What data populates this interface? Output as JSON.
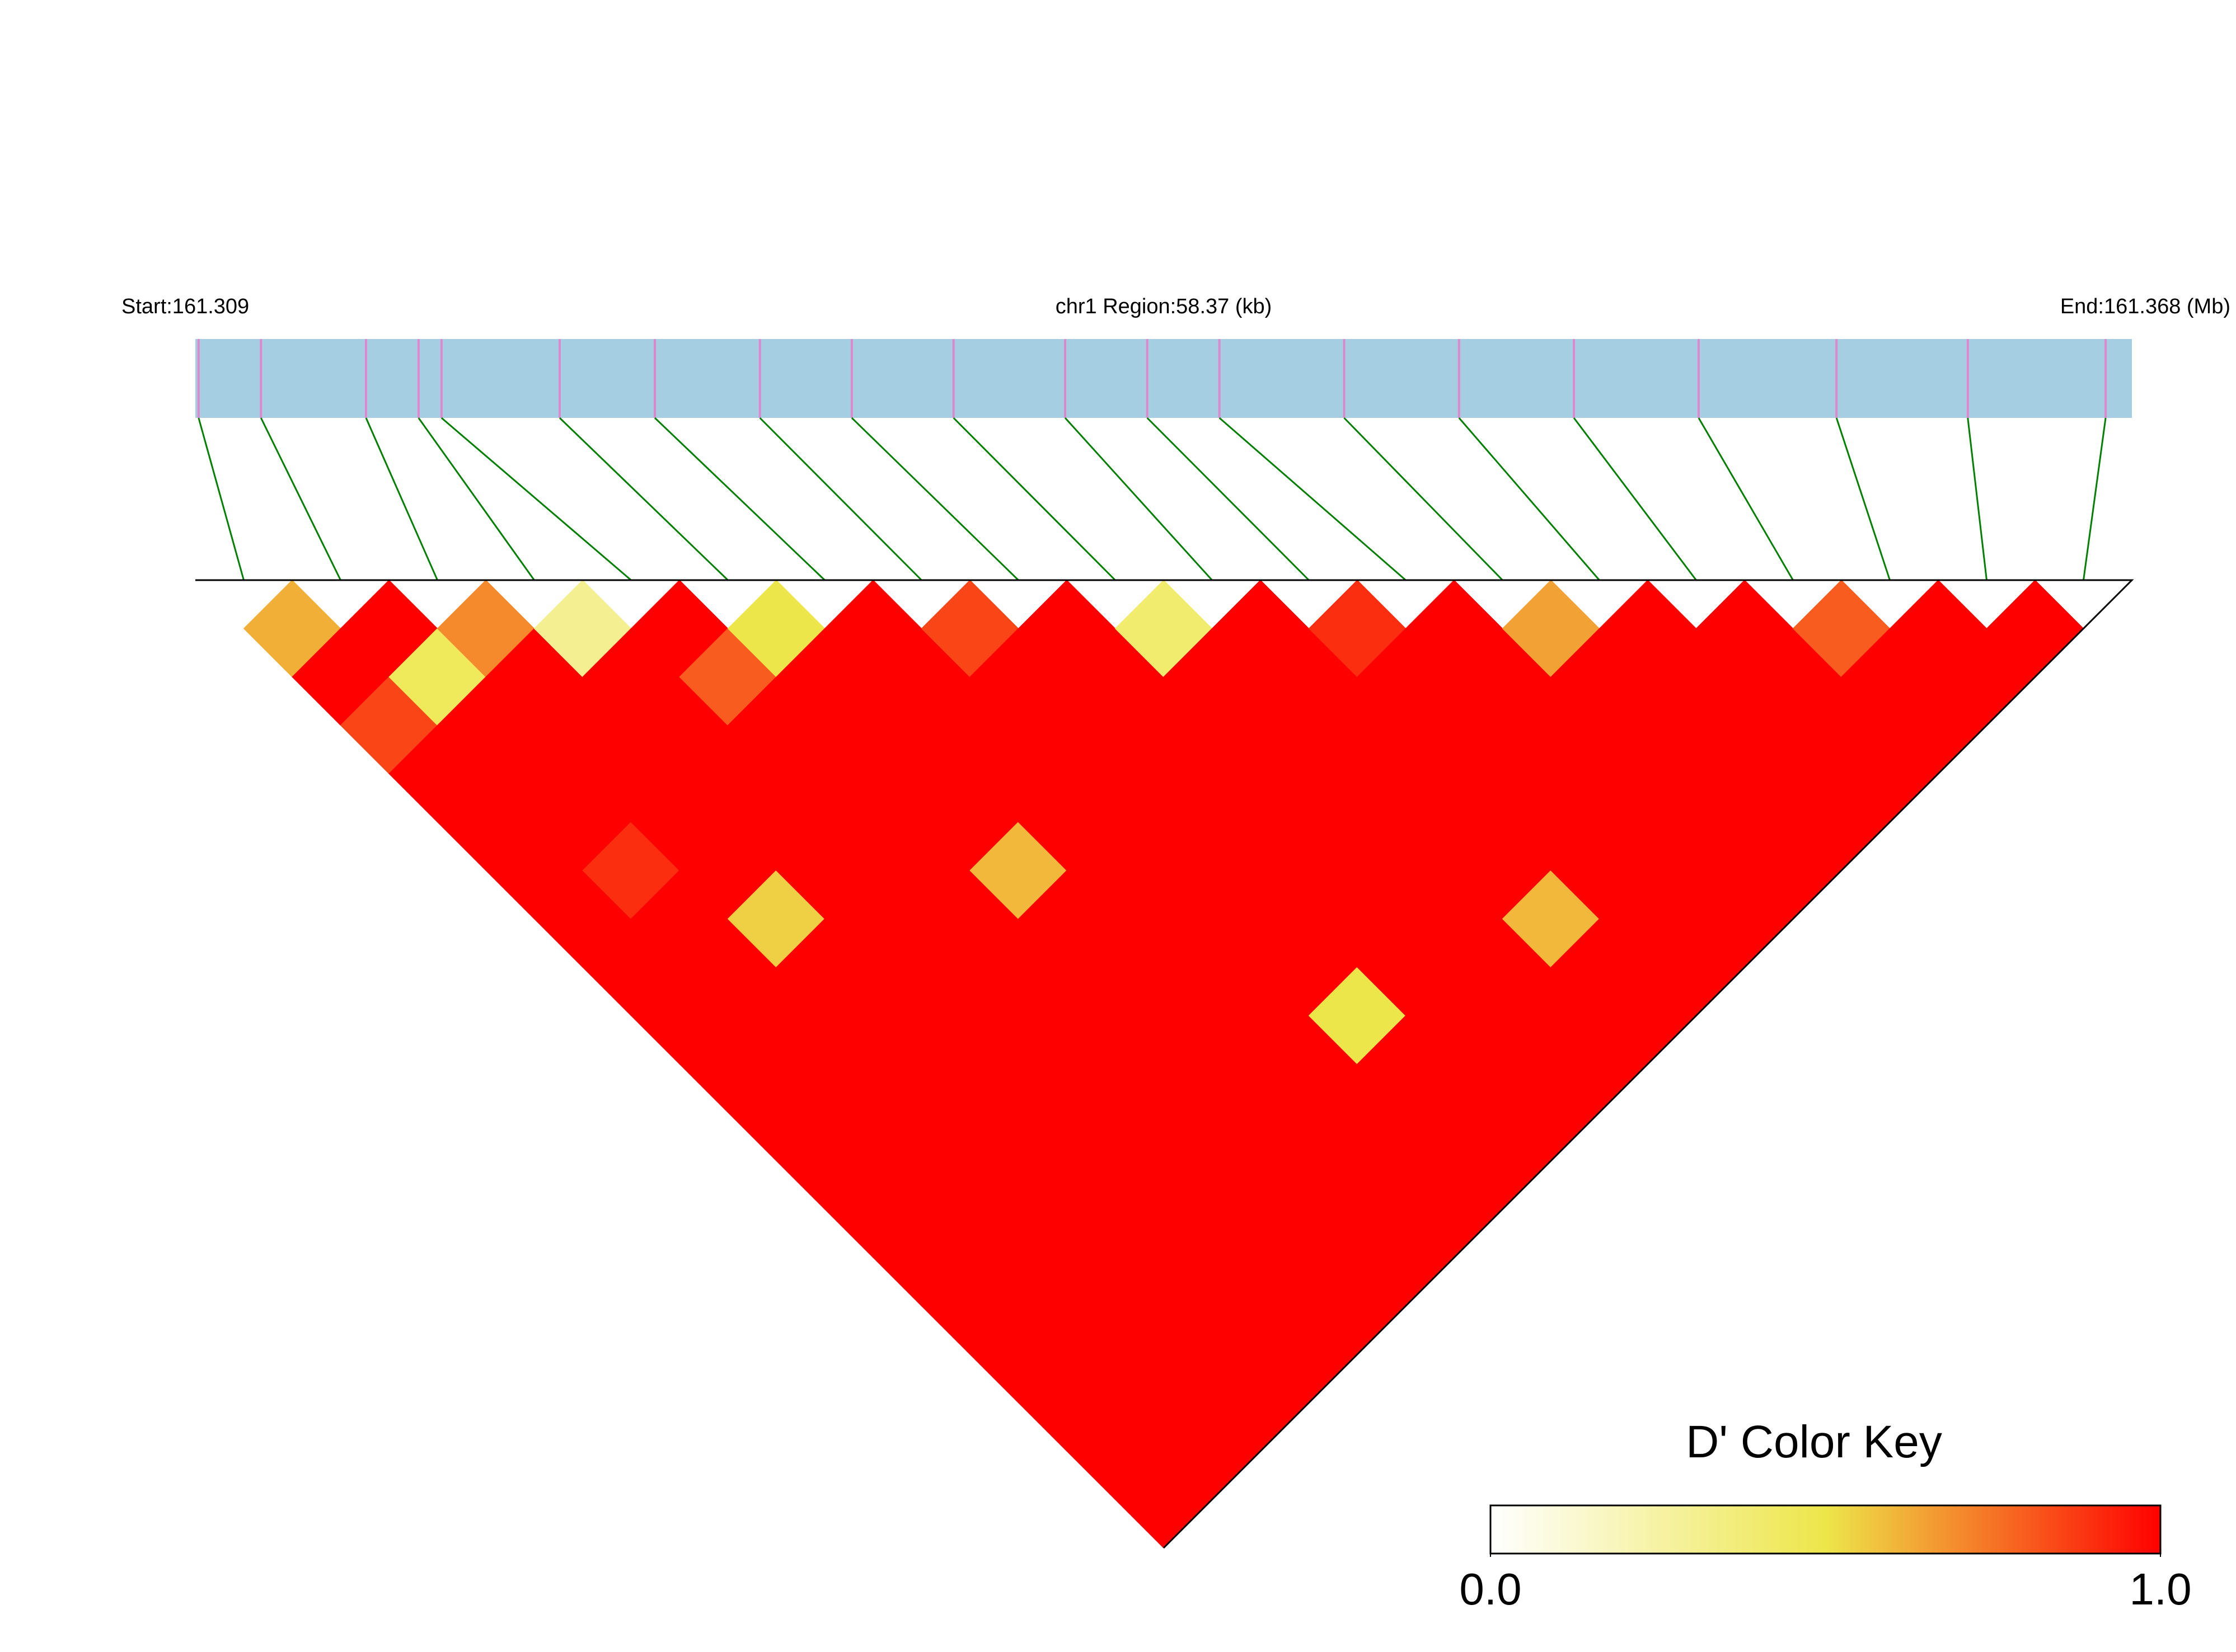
{
  "header": {
    "start": "Start:161.309",
    "region": "chr1 Region:58.37 (kb)",
    "end": "End:161.368 (Mb)"
  },
  "chart_data": {
    "type": "ld-heatmap",
    "xlim": [
      161.309,
      161.368
    ],
    "x": [
      161.3091,
      161.311,
      161.3142,
      161.3158,
      161.3165,
      161.3201,
      161.323,
      161.3262,
      161.329,
      161.3321,
      161.3355,
      161.338,
      161.3402,
      161.344,
      161.3475,
      161.351,
      161.3548,
      161.359,
      161.363,
      161.3672
    ],
    "values": [
      [
        0.62,
        1,
        0.85,
        1,
        1,
        1,
        1,
        1,
        1,
        1,
        1,
        1,
        1,
        1,
        1,
        1,
        1,
        1,
        1
      ],
      [
        1,
        0.45,
        1,
        1,
        1,
        0.9,
        1,
        1,
        1,
        1,
        1,
        1,
        1,
        1,
        1,
        1,
        1,
        1
      ],
      [
        0.7,
        1,
        1,
        1,
        1,
        1,
        0.55,
        1,
        1,
        1,
        1,
        1,
        1,
        1,
        1,
        1,
        1
      ],
      [
        0.3,
        1,
        1,
        1,
        1,
        1,
        1,
        1,
        1,
        1,
        1,
        1,
        1,
        1,
        1,
        1
      ],
      [
        1,
        0.8,
        1,
        1,
        1,
        1,
        1,
        1,
        1,
        1,
        1,
        1,
        1,
        1,
        1
      ],
      [
        0.5,
        1,
        1,
        1,
        1,
        0.6,
        1,
        1,
        1,
        1,
        1,
        1,
        1,
        1
      ],
      [
        1,
        1,
        1,
        1,
        1,
        1,
        1,
        1,
        1,
        1,
        1,
        1,
        1
      ],
      [
        0.85,
        1,
        1,
        1,
        1,
        1,
        1,
        1,
        0.5,
        1,
        1,
        1
      ],
      [
        1,
        1,
        1,
        1,
        1,
        1,
        1,
        1,
        1,
        1,
        1
      ],
      [
        0.4,
        1,
        1,
        1,
        1,
        1,
        1,
        1,
        1,
        1
      ],
      [
        1,
        1,
        1,
        1,
        1,
        1,
        0.6,
        1,
        1
      ],
      [
        0.9,
        1,
        1,
        1,
        1,
        1,
        1,
        1
      ],
      [
        1,
        1,
        1,
        1,
        1,
        1,
        1
      ],
      [
        0.65,
        1,
        1,
        1,
        1,
        1
      ],
      [
        1,
        1,
        1,
        1,
        1
      ],
      [
        1,
        1,
        1,
        1
      ],
      [
        0.8,
        1,
        1
      ],
      [
        1,
        1
      ],
      [
        1
      ]
    ],
    "colormap": [
      "#ffffff",
      "#ede64a",
      "#ff0000"
    ],
    "track_color": "#a6cee3",
    "snp_color": "#dd88cc",
    "link_color": "#008000",
    "colorbar": {
      "title": "D' Color Key",
      "lim": [
        0,
        1
      ],
      "ticks": [
        {
          "value": 0,
          "label": "0.0"
        },
        {
          "value": 1,
          "label": "1.0"
        }
      ]
    }
  }
}
